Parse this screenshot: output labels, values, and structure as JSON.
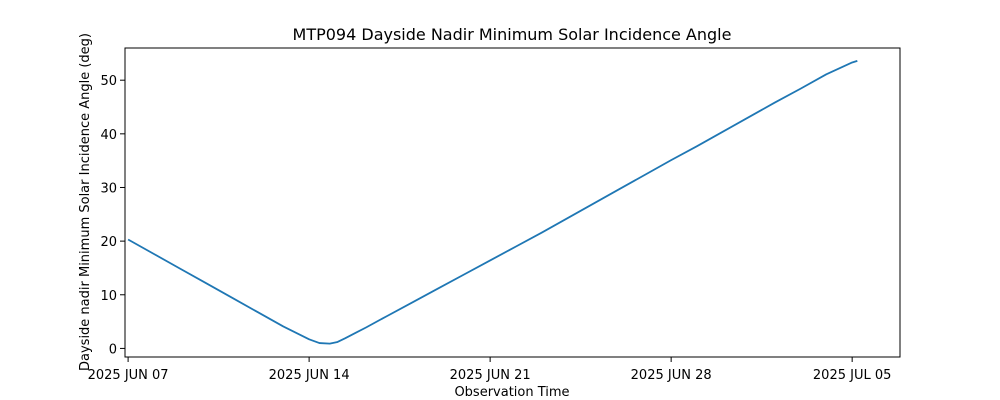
{
  "chart_data": {
    "type": "line",
    "title": "MTP094 Dayside Nadir Minimum Solar Incidence Angle",
    "xlabel": "Observation Time",
    "ylabel": "Dayside nadir Minimum Solar Incidence Angle (deg)",
    "x_unit": "days since 2025 JUN 07",
    "xlim": [
      -0.12,
      29.85
    ],
    "ylim": [
      -1.6,
      56.0
    ],
    "x_ticks": [
      {
        "value": 0,
        "label": "2025 JUN 07"
      },
      {
        "value": 7,
        "label": "2025 JUN 14"
      },
      {
        "value": 14,
        "label": "2025 JUN 21"
      },
      {
        "value": 21,
        "label": "2025 JUN 28"
      },
      {
        "value": 28,
        "label": "2025 JUL 05"
      }
    ],
    "y_ticks": [
      0,
      10,
      20,
      30,
      40,
      50
    ],
    "grid": false,
    "series": [
      {
        "name": "Dayside nadir Minimum Solar Incidence Angle",
        "color": "#1f77b4",
        "x": [
          0,
          1,
          2,
          3,
          4,
          5,
          6,
          7,
          7.4,
          7.8,
          8.1,
          8.4,
          8.8,
          9.2,
          10,
          11,
          12,
          13,
          14,
          15,
          16,
          17,
          18,
          19,
          20,
          21,
          22,
          23,
          24,
          25,
          26,
          27,
          28,
          28.2
        ],
        "y": [
          20.3,
          17.6,
          14.9,
          12.2,
          9.5,
          6.8,
          4.1,
          1.7,
          1.0,
          0.9,
          1.2,
          1.9,
          2.9,
          3.9,
          6.0,
          8.6,
          11.2,
          13.8,
          16.4,
          19.0,
          21.6,
          24.3,
          27.0,
          29.7,
          32.4,
          35.1,
          37.7,
          40.4,
          43.1,
          45.8,
          48.4,
          51.1,
          53.3,
          53.6
        ]
      }
    ]
  }
}
